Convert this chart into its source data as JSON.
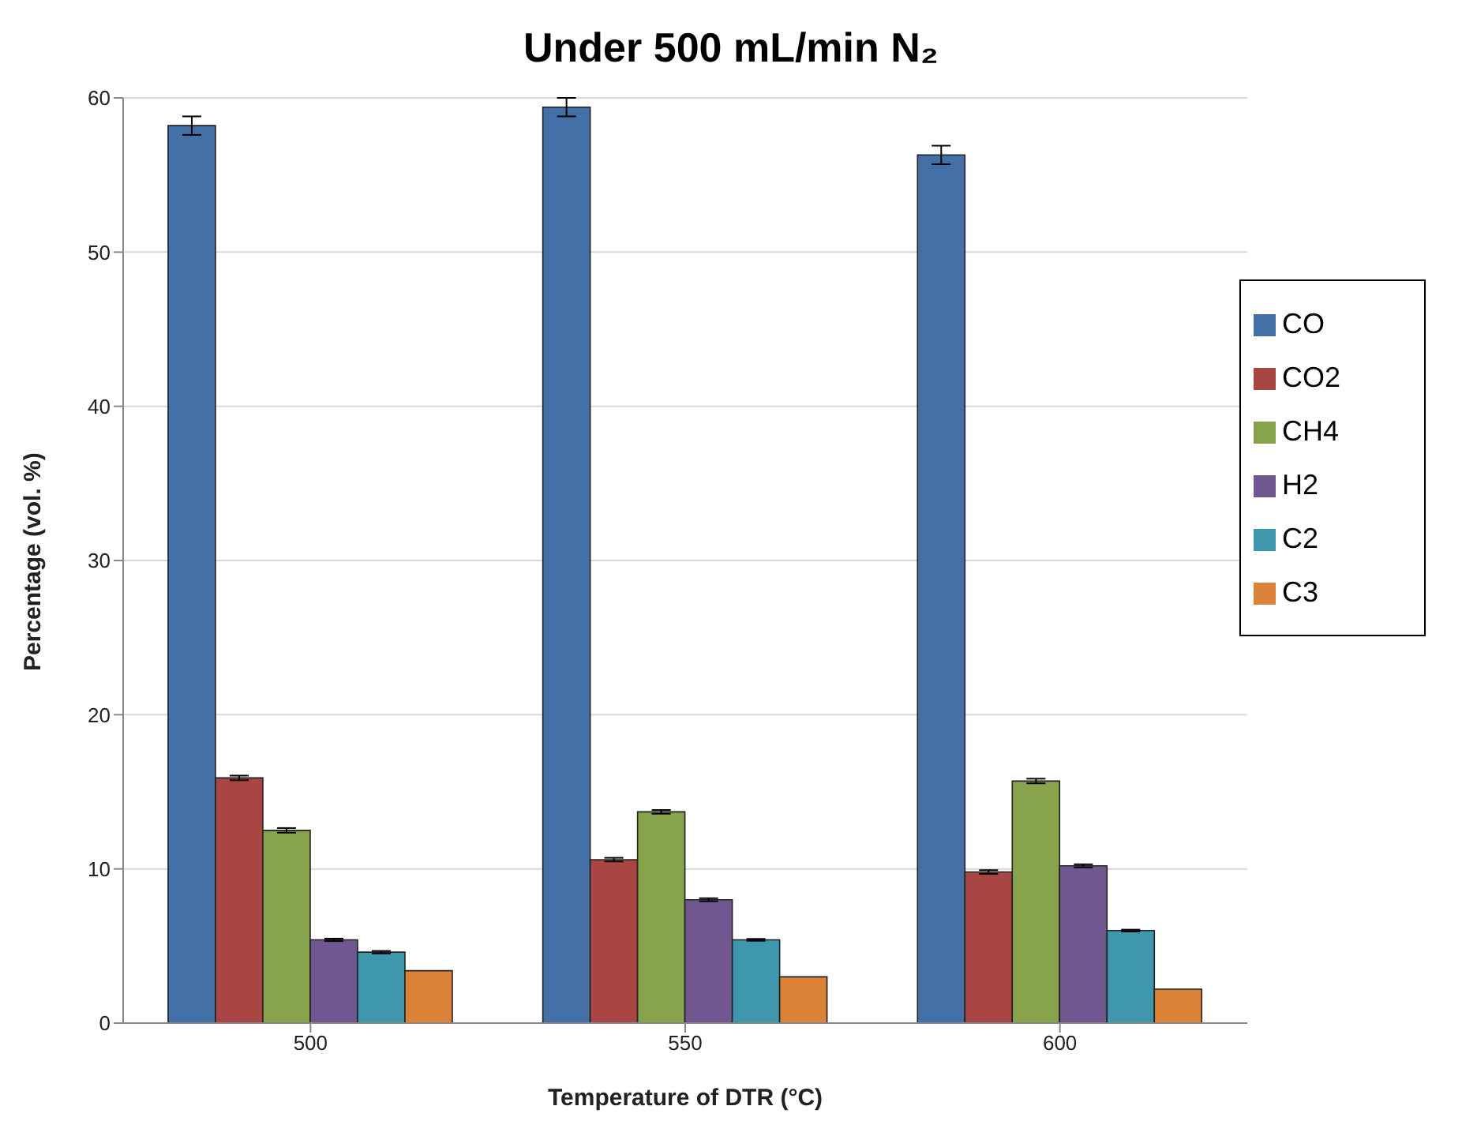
{
  "chart_data": {
    "type": "bar",
    "title": "Under 500 mL/min N₂",
    "xlabel": "Temperature of DTR (°C)",
    "ylabel": "Percentage (vol. %)",
    "categories": [
      "500",
      "550",
      "600"
    ],
    "series": [
      {
        "name": "CO",
        "color": "#4470a8",
        "values": [
          58.2,
          59.4,
          56.3
        ],
        "errors": [
          0.6,
          0.6,
          0.6
        ]
      },
      {
        "name": "CO2",
        "color": "#a94543",
        "values": [
          15.9,
          10.6,
          9.8
        ],
        "errors": [
          0.15,
          0.12,
          0.12
        ]
      },
      {
        "name": "CH4",
        "color": "#87a34c",
        "values": [
          12.5,
          13.7,
          15.7
        ],
        "errors": [
          0.15,
          0.12,
          0.15
        ]
      },
      {
        "name": "H2",
        "color": "#71578f",
        "values": [
          5.4,
          8.0,
          10.2
        ],
        "errors": [
          0.08,
          0.1,
          0.1
        ]
      },
      {
        "name": "C2",
        "color": "#3f97ae",
        "values": [
          4.6,
          5.4,
          6.0
        ],
        "errors": [
          0.08,
          0.06,
          0.06
        ]
      },
      {
        "name": "C3",
        "color": "#db8237",
        "values": [
          3.4,
          3.0,
          2.2
        ]
      }
    ],
    "ylim": [
      0,
      60
    ],
    "yticks": [
      0,
      10,
      20,
      30,
      40,
      50,
      60
    ],
    "grid": "y",
    "legend": "top right"
  }
}
